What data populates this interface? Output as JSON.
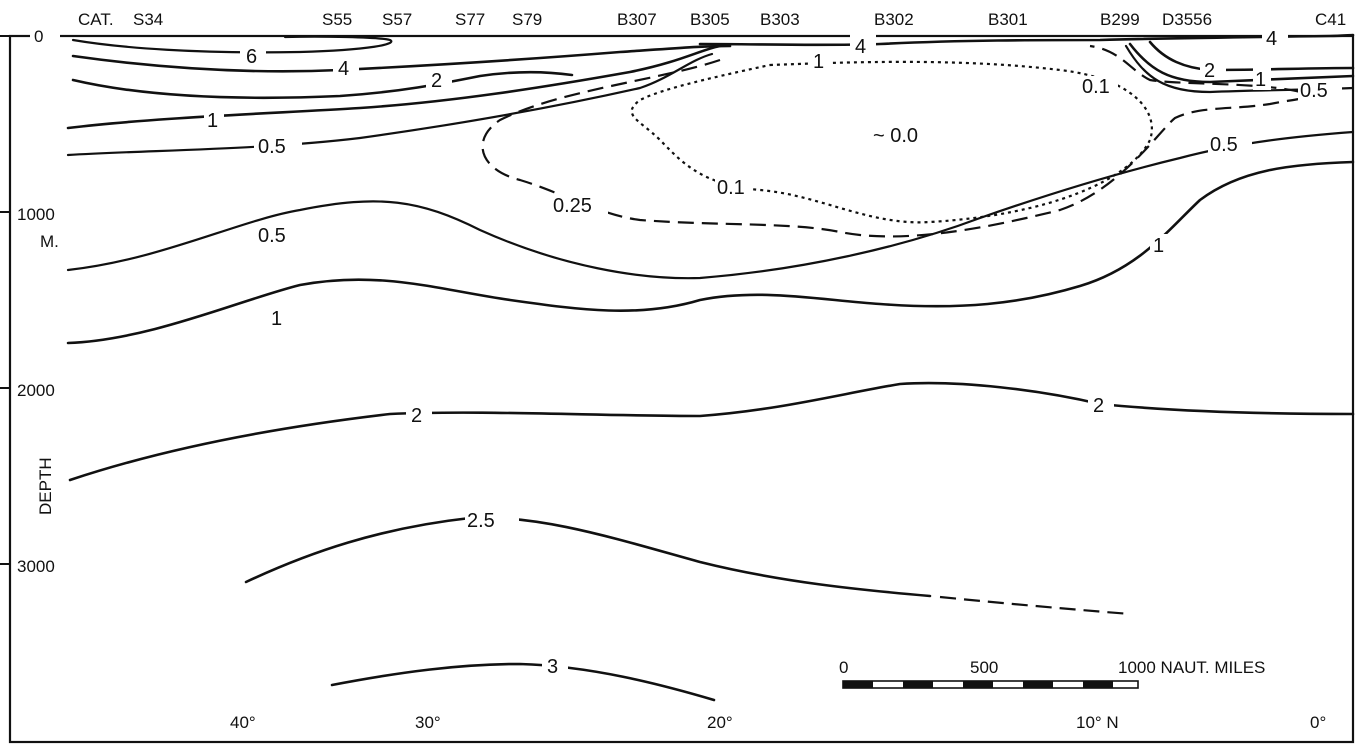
{
  "stations": [
    "CAT.",
    "S34",
    "S55",
    "S57",
    "S77",
    "S79",
    "B307",
    "B305",
    "B303",
    "B302",
    "B301",
    "B299",
    "D3556",
    "C41"
  ],
  "depth_axis": {
    "ticks": [
      "0",
      "1000",
      "2000",
      "3000"
    ],
    "unit": "M.",
    "title": "DEPTH"
  },
  "latitude_axis": {
    "ticks": [
      "40°",
      "30°",
      "20°",
      "10° N",
      "0°"
    ]
  },
  "contour_labels": {
    "c6": "6",
    "c4a": "4",
    "c2a": "2",
    "c1a": "1",
    "c05a": "0.5",
    "c4b": "4",
    "c1b": "1",
    "c4c": "4",
    "c2b": "2",
    "c1c": "1",
    "c05b": "0.5",
    "c01a": "0.1",
    "c00": "~ 0.0",
    "c01b": "0.1",
    "c025": "0.25",
    "c05c": "0.5",
    "c05d": "0.5",
    "c1d": "1",
    "c1e": "1",
    "c2c": "2",
    "c2d": "2",
    "c25": "2.5",
    "c3": "3"
  },
  "scale_bar": {
    "labels": [
      "0",
      "500",
      "1000 NAUT. MILES"
    ]
  }
}
